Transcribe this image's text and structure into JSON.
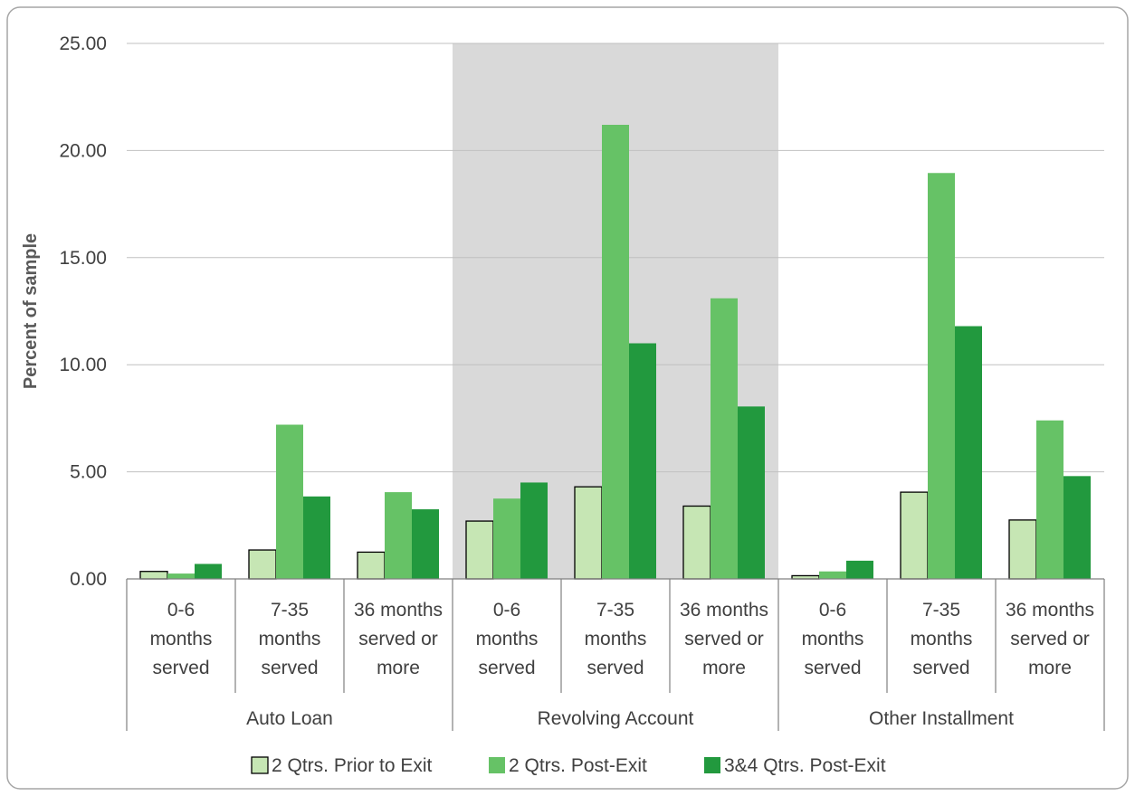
{
  "chart_data": {
    "type": "bar",
    "title": "",
    "xlabel": "",
    "ylabel": "Percent of sample",
    "ylim": [
      0,
      25
    ],
    "yticks": [
      "0.00",
      "5.00",
      "10.00",
      "15.00",
      "20.00",
      "25.00"
    ],
    "grid": true,
    "legend_position": "bottom",
    "groups": [
      {
        "label": "Auto Loan",
        "shaded": false
      },
      {
        "label": "Revolving Account",
        "shaded": true
      },
      {
        "label": "Other Installment",
        "shaded": false
      }
    ],
    "categories": [
      {
        "group": 0,
        "lines": [
          "0-6",
          "months",
          "served"
        ]
      },
      {
        "group": 0,
        "lines": [
          "7-35",
          "months",
          "served"
        ]
      },
      {
        "group": 0,
        "lines": [
          "36 months",
          "served or",
          "more"
        ]
      },
      {
        "group": 1,
        "lines": [
          "0-6",
          "months",
          "served"
        ]
      },
      {
        "group": 1,
        "lines": [
          "7-35",
          "months",
          "served"
        ]
      },
      {
        "group": 1,
        "lines": [
          "36 months",
          "served or",
          "more"
        ]
      },
      {
        "group": 2,
        "lines": [
          "0-6",
          "months",
          "served"
        ]
      },
      {
        "group": 2,
        "lines": [
          "7-35",
          "months",
          "served"
        ]
      },
      {
        "group": 2,
        "lines": [
          "36 months",
          "served or",
          "more"
        ]
      }
    ],
    "series": [
      {
        "name": "2 Qtrs. Prior to Exit",
        "color": "#c6e6b4",
        "stroke": "#000000",
        "values": [
          0.35,
          1.35,
          1.25,
          2.7,
          4.3,
          3.4,
          0.15,
          4.05,
          2.75
        ]
      },
      {
        "name": "2 Qtrs. Post-Exit",
        "color": "#66c266",
        "stroke": "none",
        "values": [
          0.25,
          7.2,
          4.05,
          3.75,
          21.2,
          13.1,
          0.35,
          18.95,
          7.4
        ]
      },
      {
        "name": "3&4 Qtrs. Post-Exit",
        "color": "#22993e",
        "stroke": "none",
        "values": [
          0.7,
          3.85,
          3.25,
          4.5,
          11.0,
          8.05,
          0.85,
          11.8,
          4.8
        ]
      }
    ],
    "colors": {
      "gridline": "#c0c0c0",
      "shade": "#d9d9d9",
      "axis": "#808080",
      "border": "#a6a6a6"
    }
  }
}
